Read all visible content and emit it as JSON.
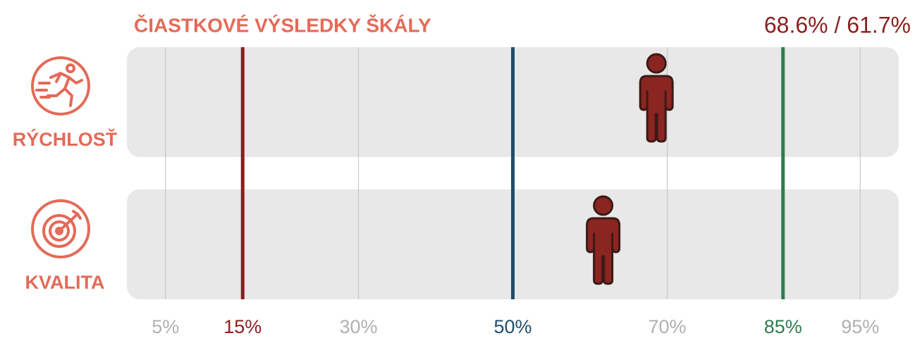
{
  "chart_data": {
    "type": "dot",
    "title": "ČIASTKOVÉ VÝSLEDKY ŠKÁLY",
    "score_label": "68.6% / 61.7%",
    "categories": [
      "RÝCHLOSŤ",
      "KVALITA"
    ],
    "values": [
      68.6,
      61.7
    ],
    "color": "#8b2520",
    "xlim": [
      0,
      100
    ],
    "xticks": [
      {
        "value": 5,
        "label": "5%"
      },
      {
        "value": 15,
        "label": "15%"
      },
      {
        "value": 30,
        "label": "30%"
      },
      {
        "value": 50,
        "label": "50%"
      },
      {
        "value": 70,
        "label": "70%"
      },
      {
        "value": 85,
        "label": "85%"
      },
      {
        "value": 95,
        "label": "95%"
      }
    ],
    "tick_colors": [
      "#b0b0b0",
      "#8b1e1e",
      "#b0b0b0",
      "#1f4e6b",
      "#b0b0b0",
      "#2e7d4f",
      "#b0b0b0"
    ],
    "tick_emphasis": [
      false,
      true,
      false,
      true,
      false,
      true,
      false
    ],
    "grid": true
  }
}
